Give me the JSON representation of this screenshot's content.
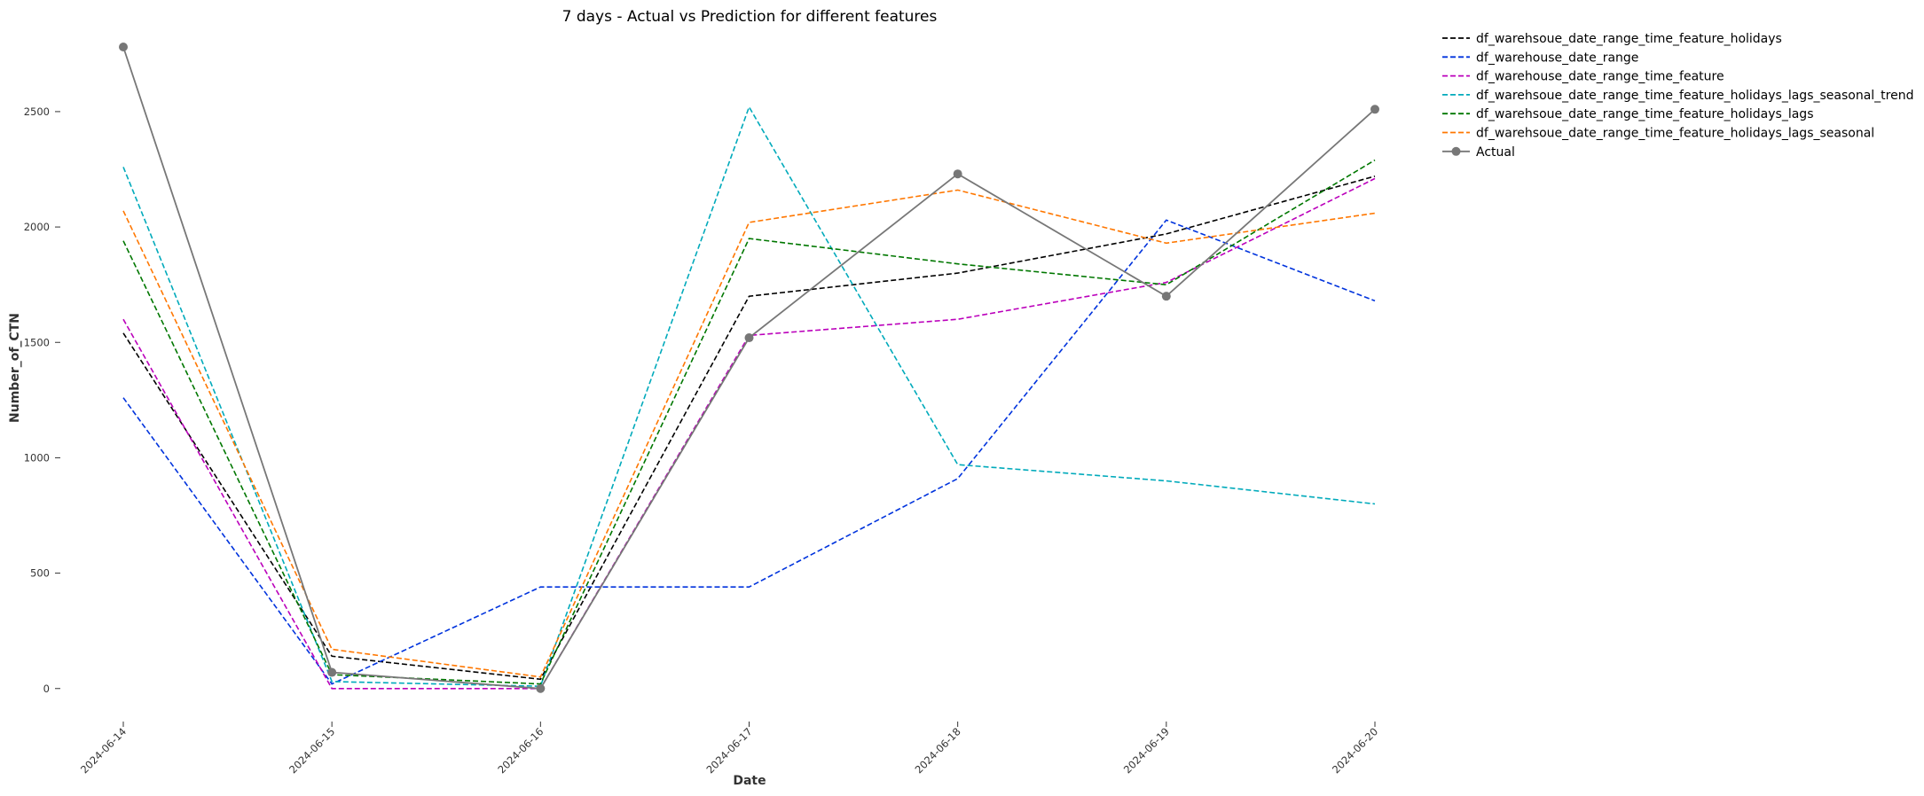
{
  "chart_data": {
    "type": "line",
    "title": "7 days - Actual vs Prediction for different features",
    "xlabel": "Date",
    "ylabel": "Number_of_CTN",
    "categories": [
      "2024-06-14",
      "2024-06-15",
      "2024-06-16",
      "2024-06-17",
      "2024-06-18",
      "2024-06-19",
      "2024-06-20"
    ],
    "yticks": [
      0,
      500,
      1000,
      1500,
      2000,
      2500
    ],
    "ylim": [
      -120,
      2830
    ],
    "grid": false,
    "legend_position": "outside-top-right",
    "series": [
      {
        "name": "df_warehsoue_date_range_time_feature_holidays",
        "color": "#000000",
        "style": "dashed",
        "values": [
          1540,
          140,
          40,
          1700,
          1800,
          1970,
          2220
        ]
      },
      {
        "name": "df_warehouse_date_range",
        "color": "#0033dd",
        "style": "dashed",
        "values": [
          1260,
          20,
          440,
          440,
          910,
          2030,
          1680
        ]
      },
      {
        "name": "df_warehouse_date_range_time_feature",
        "color": "#bb00bb",
        "style": "dashed",
        "values": [
          1600,
          0,
          0,
          1530,
          1600,
          1760,
          2210
        ]
      },
      {
        "name": "df_warehsoue_date_range_time_feature_holidays_lags_seasonal_trend",
        "color": "#00aabb",
        "style": "dashed",
        "values": [
          2260,
          30,
          10,
          2520,
          970,
          900,
          800
        ]
      },
      {
        "name": "df_warehsoue_date_range_time_feature_holidays_lags",
        "color": "#007700",
        "style": "dashed",
        "values": [
          1940,
          60,
          20,
          1950,
          1840,
          1750,
          2290
        ]
      },
      {
        "name": "df_warehsoue_date_range_time_feature_holidays_lags_seasonal",
        "color": "#ff7700",
        "style": "dashed",
        "values": [
          2070,
          170,
          50,
          2020,
          2160,
          1930,
          2060
        ]
      },
      {
        "name": "Actual",
        "color": "#777777",
        "style": "solid-marker",
        "values": [
          2780,
          70,
          0,
          1520,
          2230,
          1700,
          2510
        ]
      }
    ]
  }
}
